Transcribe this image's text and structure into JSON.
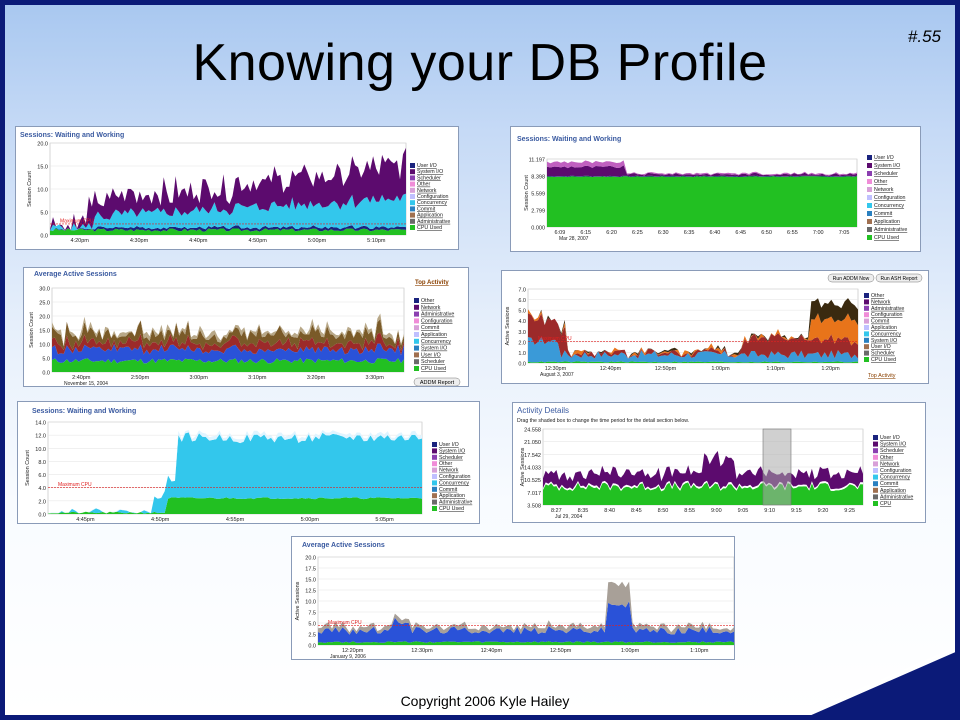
{
  "slide": {
    "title": "Knowing your DB Profile",
    "number": "#.55",
    "footer": "Copyright 2006 Kyle Hailey"
  },
  "legend_sets": {
    "a": [
      "User I/O",
      "System I/O",
      "Scheduler",
      "Other",
      "Network",
      "Configuration",
      "Concurrency",
      "Commit",
      "Application",
      "Administrative",
      "CPU Used"
    ],
    "b": [
      "Other",
      "Network",
      "Administrative",
      "Configuration",
      "Commit",
      "Application",
      "Concurrency",
      "System I/O",
      "User I/O",
      "Scheduler",
      "CPU Used"
    ],
    "d": [
      "Other",
      "Network",
      "Administrative",
      "Configuration",
      "Commit",
      "Application",
      "Concurrency",
      "System I/O",
      "User I/O",
      "Scheduler",
      "CPU Used"
    ],
    "f": [
      "User I/O",
      "System I/O",
      "Scheduler",
      "Other",
      "Network",
      "Configuration",
      "Concurrency",
      "Commit",
      "Application",
      "Administrative",
      "CPU"
    ]
  },
  "colors": {
    "cpu": "#22c022",
    "userio": "#2a52d8",
    "sysio": "#3a9ad8",
    "concurrency": "#9c2a2a",
    "wait_purple": "#5c0b6e",
    "cyan": "#33c7ec",
    "brown": "#7a5a28",
    "tan": "#b8a888",
    "orange": "#e8741a"
  },
  "panels": [
    {
      "title": "Sessions: Waiting and Working",
      "ylabel": "Session Count",
      "yticks": [
        "0.0",
        "5.0",
        "10.0",
        "15.0",
        "20.0"
      ],
      "xticks": [
        "4:20pm",
        "4:30pm",
        "4:40pm",
        "4:50pm",
        "5:00pm",
        "5:10pm"
      ],
      "maxcpu": "Maximum CPU",
      "legend": "a"
    },
    {
      "title": "Sessions: Waiting and Working",
      "ylabel": "Session Count",
      "yticks": [
        "0.000",
        "2.799",
        "5.599",
        "8.398",
        "11.197"
      ],
      "xticks": [
        "6:09",
        "6:15",
        "6:20",
        "6:25",
        "6:30",
        "6:35",
        "6:40",
        "6:45",
        "6:50",
        "6:55",
        "7:00",
        "7:05"
      ],
      "date": "Mar 28, 2007",
      "legend": "a"
    },
    {
      "title": "Average Active Sessions",
      "link": "Top Activity",
      "ylabel": "Session Count",
      "yticks": [
        "0.0",
        "5.0",
        "10.0",
        "15.0",
        "20.0",
        "25.0",
        "30.0"
      ],
      "xticks": [
        "2:40pm",
        "2:50pm",
        "3:00pm",
        "3:10pm",
        "3:20pm",
        "3:30pm"
      ],
      "date": "November 15, 2004",
      "button": "ADDM Report",
      "legend": "b"
    },
    {
      "buttons": [
        "Run ADDM Now",
        "Run ASH Report"
      ],
      "ylabel": "Active Sessions",
      "yticks": [
        "0.0",
        "1.0",
        "2.0",
        "3.0",
        "4.0",
        "5.0",
        "6.0",
        "7.0"
      ],
      "xticks": [
        "12:30pm",
        "12:40pm",
        "12:50pm",
        "1:00pm",
        "1:10pm",
        "1:20pm"
      ],
      "date": "August 3, 2007",
      "maxcpu": "Maximum CPU",
      "link": "Top Activity",
      "legend": "d"
    },
    {
      "title": "Sessions: Waiting and Working",
      "ylabel": "Session Count",
      "yticks": [
        "0.0",
        "2.0",
        "4.0",
        "6.0",
        "8.0",
        "10.0",
        "12.0",
        "14.0"
      ],
      "xticks": [
        "4:45pm",
        "4:50pm",
        "4:55pm",
        "5:00pm",
        "5:05pm"
      ],
      "maxcpu": "Maximum CPU",
      "legend": "a"
    },
    {
      "title": "Activity Details",
      "subtitle": "Drag the shaded box to change the time period for the detail section below.",
      "ylabel": "Active Sessions",
      "yticks": [
        "3.508",
        "7.017",
        "10.525",
        "14.033",
        "17.542",
        "21.050",
        "24.558"
      ],
      "xticks": [
        "8:27",
        "8:35",
        "8:40",
        "8:45",
        "8:50",
        "8:55",
        "9:00",
        "9:05",
        "9:10",
        "9:15",
        "9:20",
        "9:25"
      ],
      "date": "Jul 29, 2004",
      "legend": "f"
    },
    {
      "title": "Average Active Sessions",
      "ylabel": "Active Sessions",
      "yticks": [
        "0.0",
        "2.5",
        "5.0",
        "7.5",
        "10.0",
        "12.5",
        "15.0",
        "17.5",
        "20.0"
      ],
      "xticks": [
        "12:20pm",
        "12:30pm",
        "12:40pm",
        "12:50pm",
        "1:00pm",
        "1:10pm"
      ],
      "date": "January 9, 2006",
      "maxcpu": "Maximum CPU"
    }
  ]
}
